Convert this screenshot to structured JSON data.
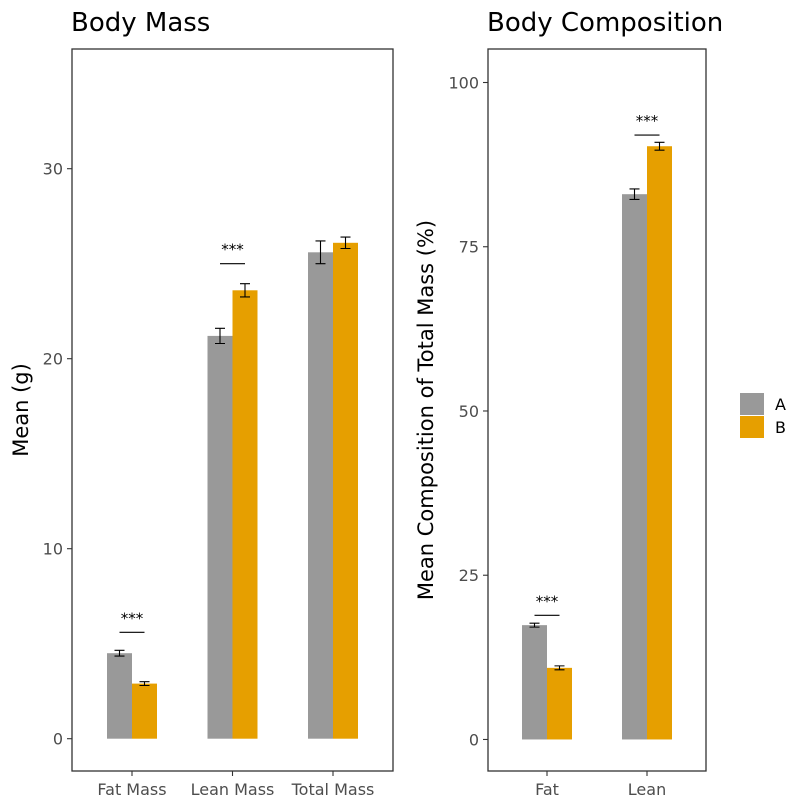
{
  "series_colors": {
    "A": "#999999",
    "B": "#E69F00"
  },
  "legend": {
    "items": [
      "A",
      "B"
    ]
  },
  "chart_data": [
    {
      "type": "bar",
      "title": "Body Mass",
      "xlabel": "",
      "ylabel": "Mean (g)",
      "ylim": [
        -1.7,
        36.3
      ],
      "yticks": [
        0,
        10,
        20,
        30
      ],
      "categories": [
        "Fat Mass",
        "Lean Mass",
        "Total Mass"
      ],
      "series": [
        {
          "name": "A",
          "values": [
            4.5,
            21.2,
            25.6
          ],
          "errors": [
            0.15,
            0.4,
            0.6
          ]
        },
        {
          "name": "B",
          "values": [
            2.9,
            23.6,
            26.1
          ],
          "errors": [
            0.1,
            0.35,
            0.3
          ]
        }
      ],
      "annotations": [
        {
          "category": "Fat Mass",
          "label": "***",
          "y": 5.6
        },
        {
          "category": "Lean Mass",
          "label": "***",
          "y": 25.0
        }
      ]
    },
    {
      "type": "bar",
      "title": "Body Composition",
      "xlabel": "",
      "ylabel": "Mean Composition of Total Mass (%)",
      "ylim": [
        -4.8,
        105.1
      ],
      "yticks": [
        0,
        25,
        50,
        75,
        100
      ],
      "categories": [
        "Fat",
        "Lean"
      ],
      "series": [
        {
          "name": "A",
          "values": [
            17.4,
            83.0
          ],
          "errors": [
            0.3,
            0.8
          ]
        },
        {
          "name": "B",
          "values": [
            10.9,
            90.3
          ],
          "errors": [
            0.3,
            0.6
          ]
        }
      ],
      "annotations": [
        {
          "category": "Fat",
          "label": "***",
          "y": 18.9
        },
        {
          "category": "Lean",
          "label": "***",
          "y": 92.0
        }
      ]
    }
  ]
}
